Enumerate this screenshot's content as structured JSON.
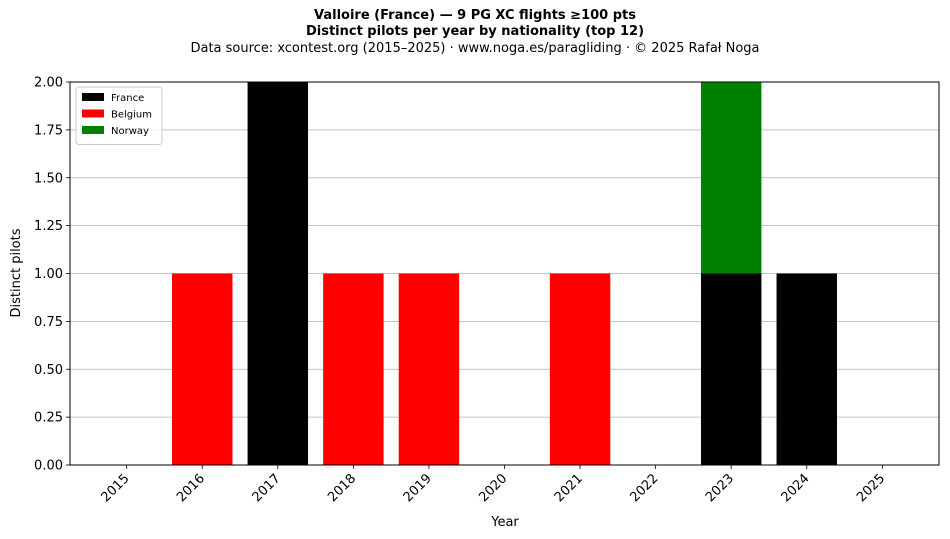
{
  "chart_data": {
    "type": "bar",
    "stacked": true,
    "title": "Valloire (France)  —  9 PG XC flights ≥100 pts",
    "subtitle": "Distinct pilots per year by nationality (top 12)",
    "source": "Data source: xcontest.org (2015–2025)  ·  www.noga.es/paragliding  ·  © 2025 Rafał Noga",
    "xlabel": "Year",
    "ylabel": "Distinct pilots",
    "categories": [
      "2015",
      "2016",
      "2017",
      "2018",
      "2019",
      "2020",
      "2021",
      "2022",
      "2023",
      "2024",
      "2025"
    ],
    "series": [
      {
        "name": "France",
        "color": "#000000",
        "values": [
          0,
          0,
          2,
          0,
          0,
          0,
          0,
          0,
          1,
          1,
          0
        ]
      },
      {
        "name": "Belgium",
        "color": "#ff0000",
        "values": [
          0,
          1,
          0,
          1,
          1,
          0,
          1,
          0,
          0,
          0,
          0
        ]
      },
      {
        "name": "Norway",
        "color": "#008000",
        "values": [
          0,
          0,
          0,
          0,
          0,
          0,
          0,
          0,
          1,
          0,
          0
        ]
      }
    ],
    "ylim": [
      0,
      2
    ],
    "yticks": [
      "0.00",
      "0.25",
      "0.50",
      "0.75",
      "1.00",
      "1.25",
      "1.50",
      "1.75",
      "2.00"
    ],
    "grid": "horizontal",
    "legend_position": "top-left"
  }
}
